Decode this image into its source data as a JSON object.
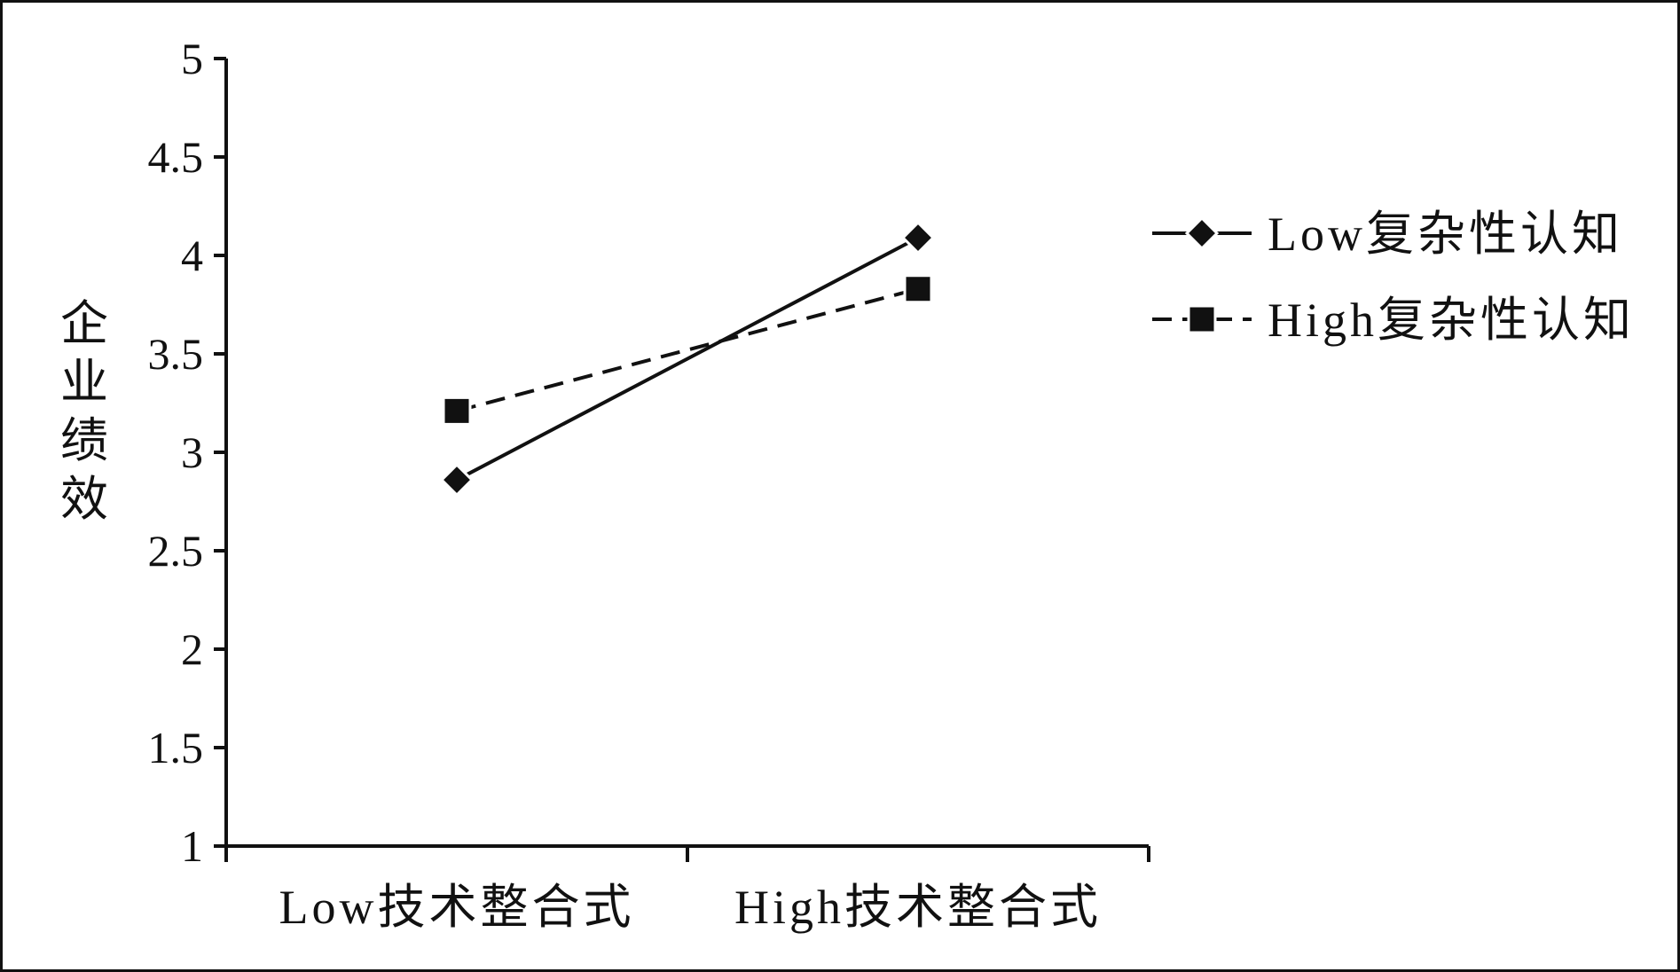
{
  "chart_data": {
    "type": "line",
    "title": "",
    "ylabel": "企业绩效",
    "xlabel": "",
    "ylim": [
      1,
      5
    ],
    "yticks": [
      "1",
      "1.5",
      "2",
      "2.5",
      "3",
      "3.5",
      "4",
      "4.5",
      "5"
    ],
    "categories": [
      "Low技术整合式",
      "High技术整合式"
    ],
    "series": [
      {
        "name": "Low复杂性认知",
        "values": [
          2.86,
          4.09
        ],
        "marker": "diamond",
        "line_style": "solid",
        "color": "#111111"
      },
      {
        "name": "High复杂性认知",
        "values": [
          3.21,
          3.83
        ],
        "marker": "square",
        "line_style": "dashed",
        "color": "#111111"
      }
    ],
    "legend_position": "right",
    "grid": false
  }
}
